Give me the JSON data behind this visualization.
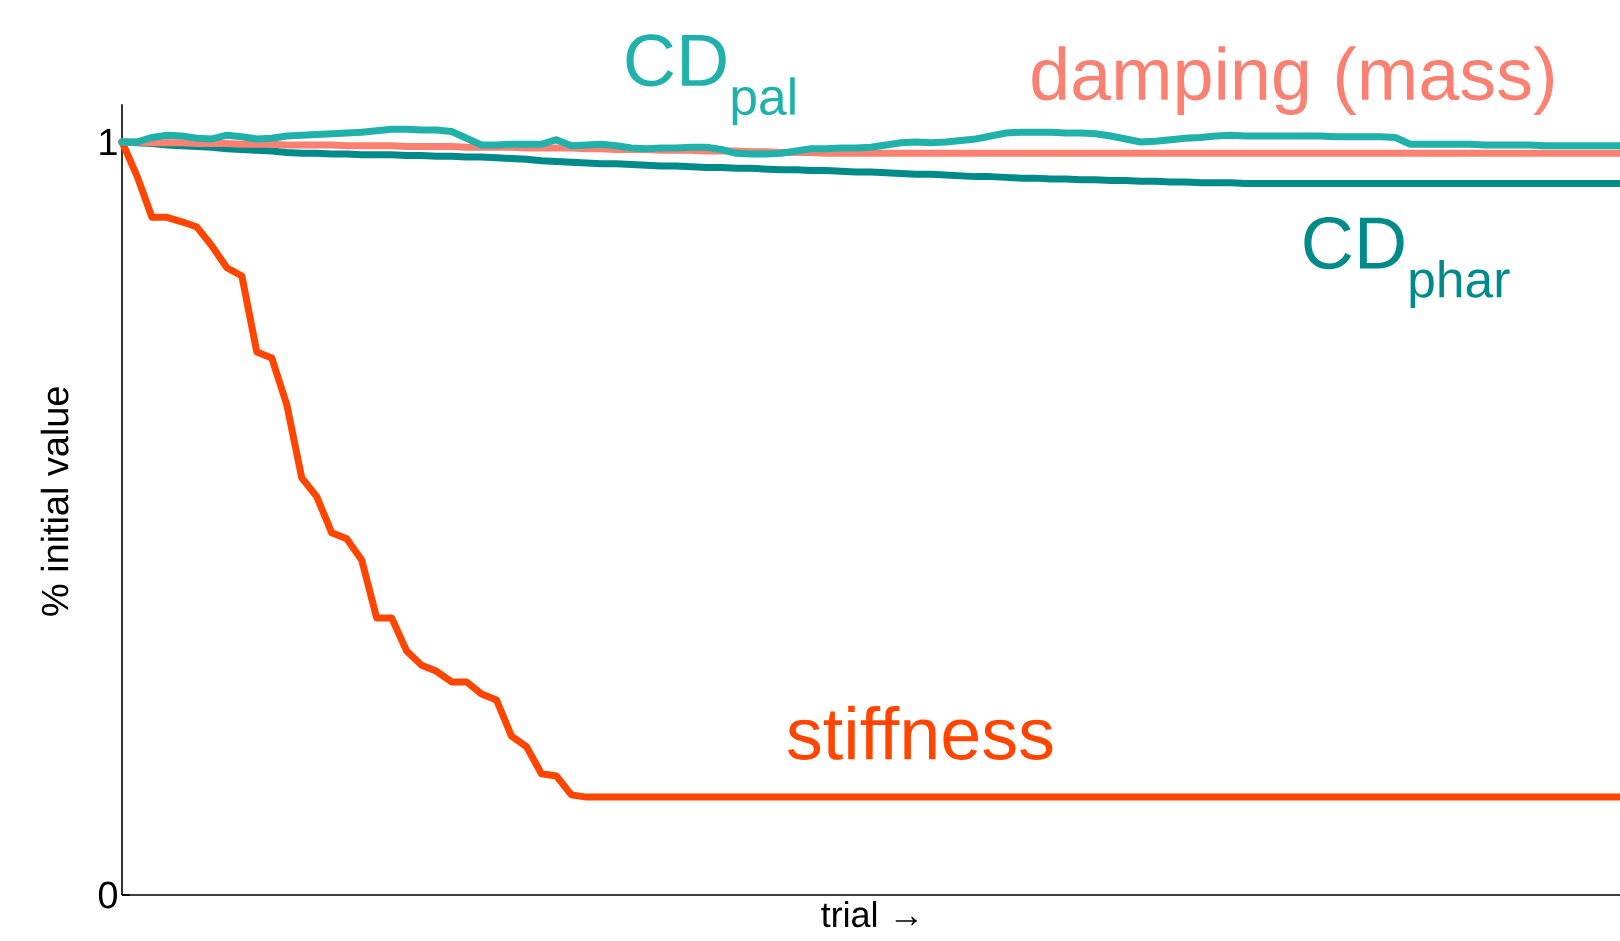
{
  "chart_data": {
    "type": "line",
    "xlabel": "trial →",
    "ylabel": "% initial value",
    "categories": [
      null,
      null,
      null,
      null,
      null,
      null,
      null,
      null,
      null,
      null,
      null,
      null,
      null,
      null,
      null,
      null,
      null,
      null,
      null,
      null,
      null,
      null,
      null,
      null,
      null,
      null,
      null,
      null,
      null,
      null,
      null,
      null,
      null,
      null,
      null,
      null,
      null,
      null,
      null,
      null,
      null,
      null,
      null,
      null,
      null,
      null,
      null,
      null,
      null,
      null,
      null,
      null,
      null,
      null,
      null,
      null,
      null,
      null,
      null,
      null,
      null,
      null,
      null,
      null,
      null,
      null,
      null,
      null,
      null,
      null,
      null,
      null,
      null,
      null,
      null,
      null,
      null,
      null,
      null,
      null,
      null,
      null,
      null,
      null,
      null,
      null,
      null,
      null,
      null,
      null,
      null,
      null,
      null,
      null,
      null,
      null,
      null,
      null,
      null,
      null,
      null
    ],
    "ylim": [
      0,
      1.05
    ],
    "yticks": [
      0,
      1
    ],
    "series": [
      {
        "name": "stiffness",
        "color": "#ff4500",
        "values": [
          1.0,
          0.955,
          0.9,
          0.9,
          0.894,
          0.887,
          0.862,
          0.833,
          0.822,
          0.721,
          0.713,
          0.651,
          0.554,
          0.529,
          0.481,
          0.473,
          0.445,
          0.368,
          0.368,
          0.324,
          0.305,
          0.297,
          0.283,
          0.283,
          0.267,
          0.259,
          0.211,
          0.197,
          0.161,
          0.158,
          0.133,
          0.13,
          0.13,
          0.13,
          0.13,
          0.13,
          0.13,
          0.13,
          0.13,
          0.13,
          0.13,
          0.13,
          0.13,
          0.13,
          0.13,
          0.13,
          0.13,
          0.13,
          0.13,
          0.13,
          0.13,
          0.13,
          0.13,
          0.13,
          0.13,
          0.13,
          0.13,
          0.13,
          0.13,
          0.13,
          0.13,
          0.13,
          0.13,
          0.13,
          0.13,
          0.13,
          0.13,
          0.13,
          0.13,
          0.13,
          0.13,
          0.13,
          0.13,
          0.13,
          0.13,
          0.13,
          0.13,
          0.13,
          0.13,
          0.13,
          0.13,
          0.13,
          0.13,
          0.13,
          0.13,
          0.13,
          0.13,
          0.13,
          0.13,
          0.13,
          0.13,
          0.13,
          0.13,
          0.13,
          0.13,
          0.13,
          0.13,
          0.13,
          0.13,
          0.13,
          0.13
        ]
      },
      {
        "name": "CD$_{phar}$",
        "color": "#008b8a",
        "values": [
          1.0,
          0.999,
          0.998,
          0.996,
          0.995,
          0.994,
          0.993,
          0.991,
          0.99,
          0.989,
          0.988,
          0.986,
          0.985,
          0.985,
          0.984,
          0.984,
          0.983,
          0.983,
          0.983,
          0.982,
          0.982,
          0.981,
          0.981,
          0.98,
          0.98,
          0.979,
          0.978,
          0.977,
          0.975,
          0.974,
          0.973,
          0.972,
          0.971,
          0.971,
          0.97,
          0.969,
          0.968,
          0.968,
          0.967,
          0.966,
          0.966,
          0.965,
          0.965,
          0.964,
          0.963,
          0.963,
          0.962,
          0.962,
          0.961,
          0.96,
          0.96,
          0.959,
          0.958,
          0.957,
          0.957,
          0.956,
          0.955,
          0.954,
          0.954,
          0.953,
          0.952,
          0.952,
          0.951,
          0.951,
          0.95,
          0.95,
          0.949,
          0.949,
          0.948,
          0.948,
          0.947,
          0.947,
          0.946,
          0.946,
          0.946,
          0.945,
          0.945,
          0.945,
          0.945,
          0.945,
          0.945,
          0.945,
          0.945,
          0.945,
          0.945,
          0.945,
          0.945,
          0.945,
          0.945,
          0.945,
          0.945,
          0.945,
          0.945,
          0.945,
          0.945,
          0.945,
          0.945,
          0.945,
          0.945,
          0.945,
          0.945
        ]
      },
      {
        "name": "damping (mass)",
        "color": "#fa8072",
        "values": [
          1.0,
          1.0,
          0.999,
          0.999,
          0.999,
          0.998,
          0.998,
          0.998,
          0.997,
          0.997,
          0.997,
          0.996,
          0.996,
          0.996,
          0.996,
          0.995,
          0.995,
          0.995,
          0.995,
          0.994,
          0.994,
          0.994,
          0.994,
          0.993,
          0.993,
          0.993,
          0.993,
          0.992,
          0.992,
          0.992,
          0.992,
          0.991,
          0.991,
          0.99,
          0.99,
          0.99,
          0.989,
          0.989,
          0.989,
          0.988,
          0.988,
          0.988,
          0.987,
          0.987,
          0.986,
          0.986,
          0.986,
          0.985,
          0.985,
          0.985,
          0.985,
          0.985,
          0.985,
          0.985,
          0.985,
          0.985,
          0.985,
          0.985,
          0.985,
          0.985,
          0.985,
          0.985,
          0.985,
          0.985,
          0.985,
          0.985,
          0.985,
          0.985,
          0.985,
          0.985,
          0.985,
          0.985,
          0.985,
          0.985,
          0.985,
          0.985,
          0.985,
          0.985,
          0.985,
          0.985,
          0.985,
          0.985,
          0.985,
          0.985,
          0.985,
          0.985,
          0.985,
          0.985,
          0.985,
          0.985,
          0.985,
          0.985,
          0.985,
          0.985,
          0.985,
          0.985,
          0.985,
          0.985,
          0.985,
          0.985,
          0.985
        ]
      },
      {
        "name": "CD$_{pal}$",
        "color": "#20b2aa",
        "values": [
          1.0,
          1.0,
          1.006,
          1.009,
          1.008,
          1.005,
          1.004,
          1.009,
          1.007,
          1.004,
          1.005,
          1.008,
          1.009,
          1.01,
          1.011,
          1.012,
          1.013,
          1.015,
          1.017,
          1.017,
          1.016,
          1.016,
          1.014,
          1.005,
          0.996,
          0.996,
          0.997,
          0.997,
          0.997,
          1.003,
          0.995,
          0.996,
          0.997,
          0.995,
          0.992,
          0.991,
          0.992,
          0.992,
          0.993,
          0.993,
          0.99,
          0.985,
          0.984,
          0.984,
          0.985,
          0.988,
          0.991,
          0.991,
          0.992,
          0.992,
          0.993,
          0.996,
          0.999,
          1.0,
          0.999,
          1.0,
          1.002,
          1.004,
          1.008,
          1.012,
          1.013,
          1.013,
          1.013,
          1.012,
          1.012,
          1.011,
          1.008,
          1.004,
          1.0,
          1.001,
          1.003,
          1.005,
          1.006,
          1.008,
          1.009,
          1.008,
          1.008,
          1.008,
          1.008,
          1.008,
          1.008,
          1.007,
          1.007,
          1.007,
          1.007,
          1.006,
          0.997,
          0.997,
          0.997,
          0.997,
          0.997,
          0.996,
          0.996,
          0.996,
          0.996,
          0.995,
          0.995,
          0.995,
          0.995,
          0.995,
          0.995
        ]
      }
    ]
  }
}
